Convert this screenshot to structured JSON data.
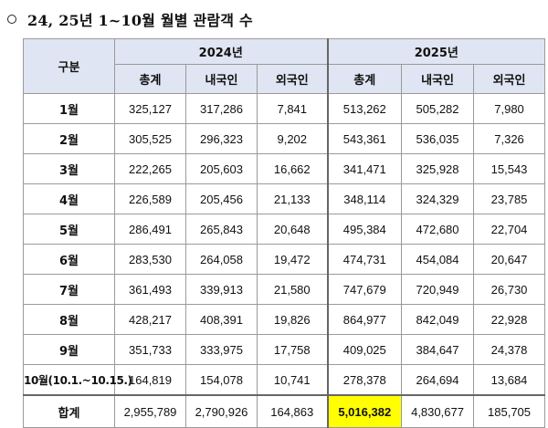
{
  "heading": "24, 25년 1~10월 월별 관람객 수",
  "table": {
    "group_col": "구분",
    "years": [
      "2024년",
      "2025년"
    ],
    "subcols": [
      "총계",
      "내국인",
      "외국인"
    ],
    "rows": [
      {
        "label": "1월",
        "v": [
          "325,127",
          "317,286",
          "7,841",
          "513,262",
          "505,282",
          "7,980"
        ]
      },
      {
        "label": "2월",
        "v": [
          "305,525",
          "296,323",
          "9,202",
          "543,361",
          "536,035",
          "7,326"
        ]
      },
      {
        "label": "3월",
        "v": [
          "222,265",
          "205,603",
          "16,662",
          "341,471",
          "325,928",
          "15,543"
        ]
      },
      {
        "label": "4월",
        "v": [
          "226,589",
          "205,456",
          "21,133",
          "348,114",
          "324,329",
          "23,785"
        ]
      },
      {
        "label": "5월",
        "v": [
          "286,491",
          "265,843",
          "20,648",
          "495,384",
          "472,680",
          "22,704"
        ]
      },
      {
        "label": "6월",
        "v": [
          "283,530",
          "264,058",
          "19,472",
          "474,731",
          "454,084",
          "20,647"
        ]
      },
      {
        "label": "7월",
        "v": [
          "361,493",
          "339,913",
          "21,580",
          "747,679",
          "720,949",
          "26,730"
        ]
      },
      {
        "label": "8월",
        "v": [
          "428,217",
          "408,391",
          "19,826",
          "864,977",
          "842,049",
          "22,928"
        ]
      },
      {
        "label": "9월",
        "v": [
          "351,733",
          "333,975",
          "17,758",
          "409,025",
          "384,647",
          "24,378"
        ]
      },
      {
        "label": "10월(10.1.~10.15.)",
        "v": [
          "164,819",
          "154,078",
          "10,741",
          "278,378",
          "264,694",
          "13,684"
        ]
      }
    ],
    "total": {
      "label": "합계",
      "v": [
        "2,955,789",
        "2,790,926",
        "164,863",
        "5,016,382",
        "4,830,677",
        "185,705"
      ]
    },
    "highlight_color": "#ffff00",
    "header_color": "#dfe5f2"
  }
}
